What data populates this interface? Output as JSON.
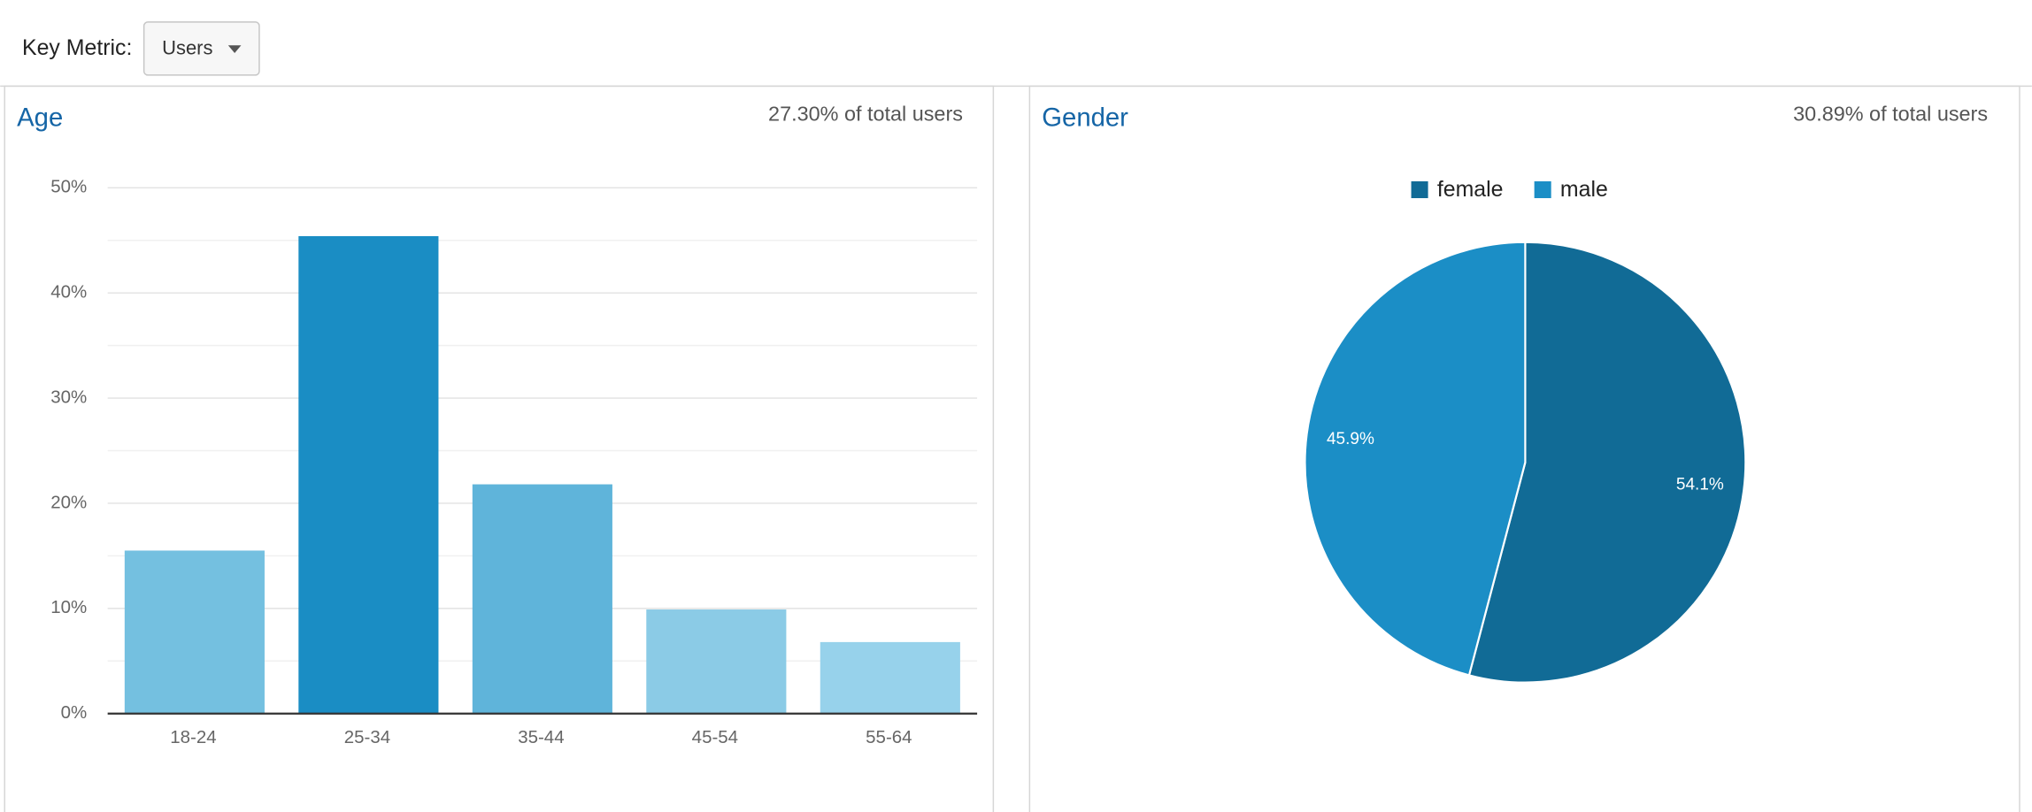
{
  "header": {
    "key_metric_label": "Key Metric:",
    "dropdown": "Users"
  },
  "chart_data": [
    {
      "type": "bar",
      "title": "Age",
      "subtitle": "27.30% of total users",
      "categories": [
        "18-24",
        "25-34",
        "35-44",
        "45-54",
        "55-64"
      ],
      "values": [
        15.5,
        45.4,
        21.8,
        9.9,
        6.8
      ],
      "colors": [
        "#74c0e0",
        "#1a8dc4",
        "#5fb4da",
        "#8bcbe6",
        "#97d2eb"
      ],
      "ylim": [
        0,
        50
      ],
      "yticks": [
        {
          "value": 0,
          "label": "0%"
        },
        {
          "value": 10,
          "label": "10%"
        },
        {
          "value": 20,
          "label": "20%"
        },
        {
          "value": 30,
          "label": "30%"
        },
        {
          "value": 40,
          "label": "40%"
        },
        {
          "value": 50,
          "label": "50%"
        }
      ],
      "minor_yticks": [
        5,
        15,
        25,
        35,
        45
      ],
      "grid": true
    },
    {
      "type": "pie",
      "title": "Gender",
      "subtitle": "30.89% of total users",
      "categories": [
        "female",
        "male"
      ],
      "values": [
        54.1,
        45.9
      ],
      "value_labels": [
        "54.1%",
        "45.9%"
      ],
      "colors": [
        "#116b96",
        "#1b8ec6"
      ],
      "legend": "top"
    }
  ]
}
